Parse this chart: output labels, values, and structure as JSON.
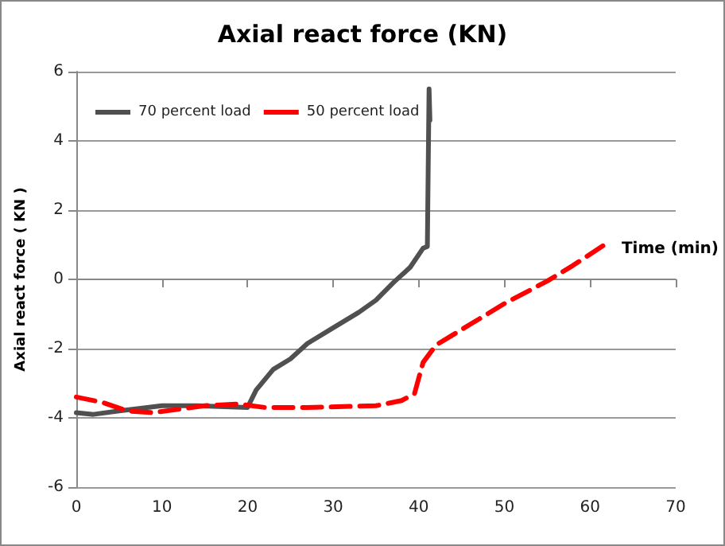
{
  "chart_data": {
    "type": "line",
    "title": "Axial react force (KN)",
    "xlabel": "Time (min)",
    "ylabel": "Axial react force ( KN )",
    "xlim": [
      0,
      70
    ],
    "xticks": [
      0,
      10,
      20,
      30,
      40,
      50,
      60,
      70
    ],
    "ylim": [
      -6,
      6
    ],
    "yticks": [
      -6,
      -4,
      -2,
      0,
      2,
      4,
      6
    ],
    "grid": "y",
    "legend": "top left",
    "marker": "none",
    "series": [
      {
        "name": "70 percent load",
        "color": "#505050",
        "line_style": "solid",
        "x": [
          0,
          2,
          5,
          10,
          14,
          20,
          21,
          23,
          25,
          27,
          30,
          33,
          35,
          37,
          39,
          40.5,
          41,
          41.2,
          41.3
        ],
        "values": [
          -3.85,
          -3.9,
          -3.8,
          -3.65,
          -3.65,
          -3.7,
          -3.2,
          -2.6,
          -2.3,
          -1.85,
          -1.4,
          -0.95,
          -0.6,
          -0.1,
          0.35,
          0.9,
          0.95,
          5.5,
          4.6
        ]
      },
      {
        "name": "50 percent load",
        "color": "#ff0000",
        "line_style": "dashed",
        "x": [
          0,
          3,
          6,
          9,
          12,
          15,
          19,
          22,
          27,
          35,
          38,
          39.5,
          40.5,
          42,
          46,
          50,
          55,
          58,
          62
        ],
        "values": [
          -3.4,
          -3.55,
          -3.8,
          -3.85,
          -3.75,
          -3.65,
          -3.6,
          -3.7,
          -3.7,
          -3.65,
          -3.5,
          -3.3,
          -2.4,
          -1.9,
          -1.3,
          -0.7,
          -0.05,
          0.4,
          1.05
        ]
      }
    ]
  }
}
